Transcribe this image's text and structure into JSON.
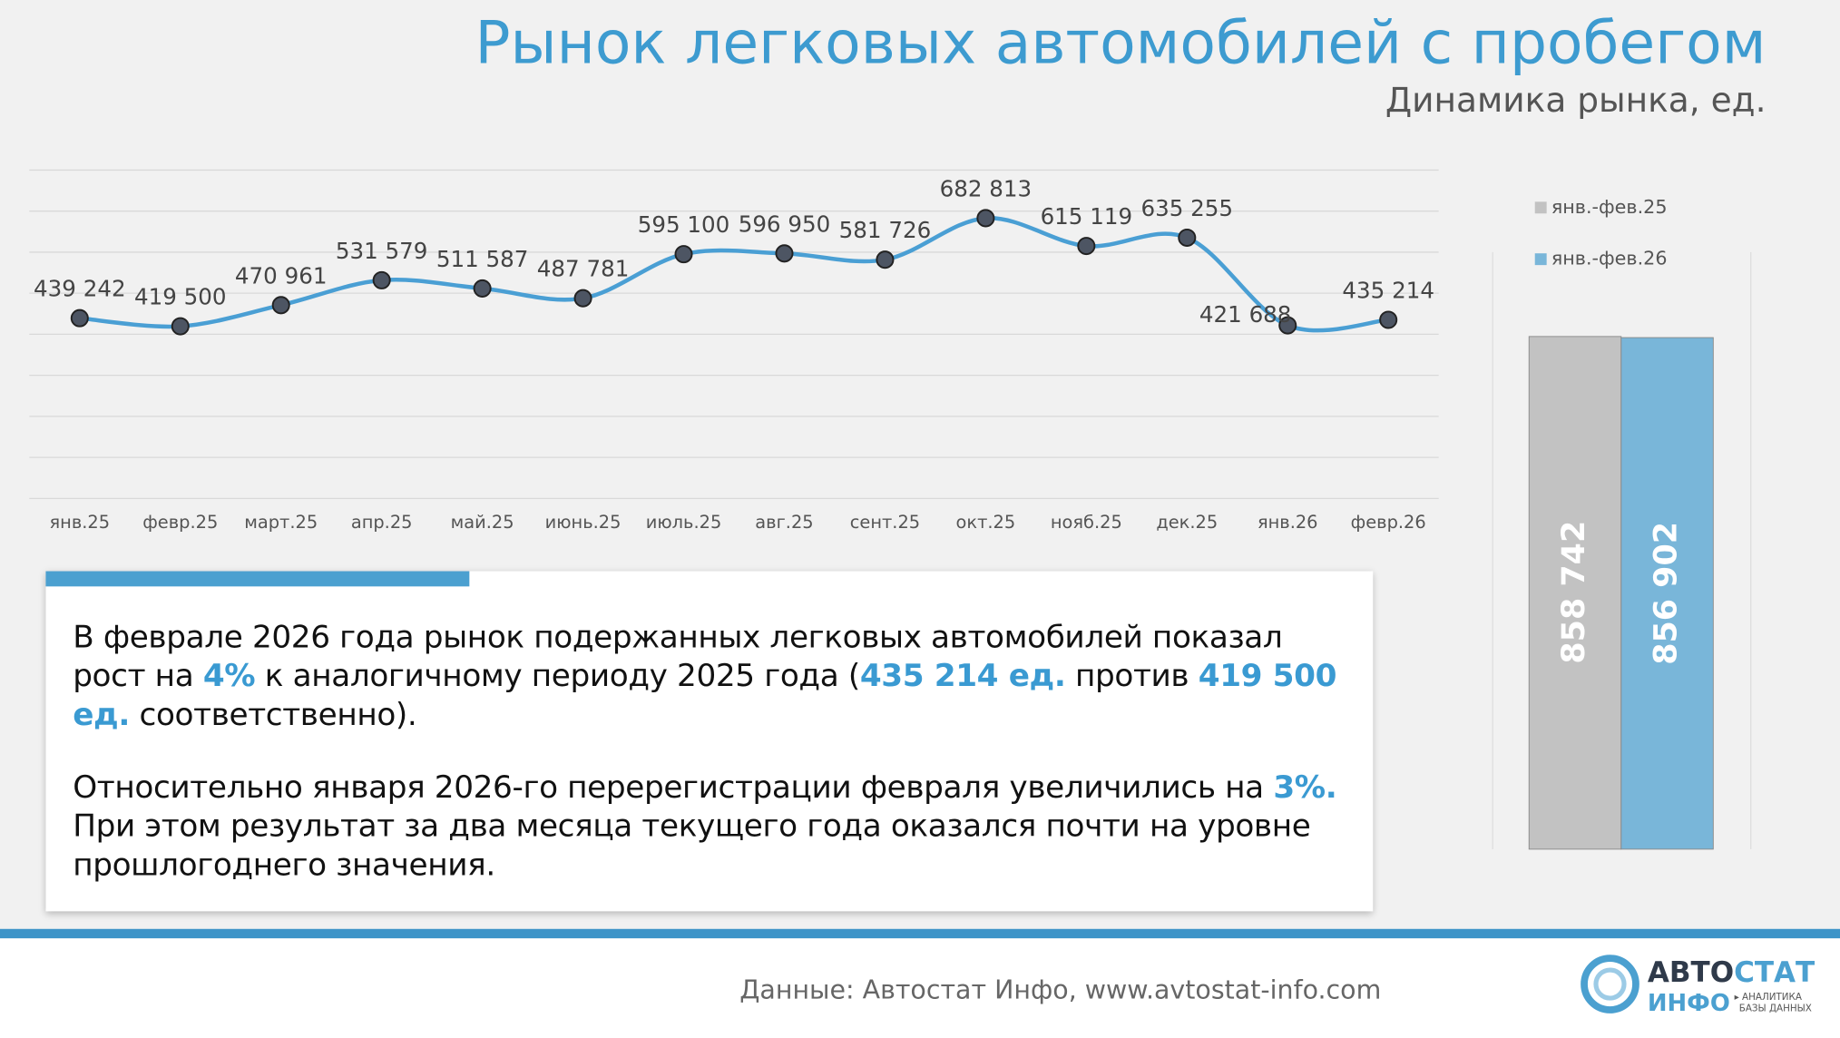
{
  "title": "Рынок легковых автомобилей с пробегом",
  "subtitle": "Динамика рынка, ед.",
  "chart_data": [
    {
      "type": "line",
      "categories": [
        "янв.25",
        "февр.25",
        "март.25",
        "апр.25",
        "май.25",
        "июнь.25",
        "июль.25",
        "авг.25",
        "сент.25",
        "окт.25",
        "нояб.25",
        "дек.25",
        "янв.26",
        "февр.26"
      ],
      "values": [
        439242,
        419500,
        470961,
        531579,
        511587,
        487781,
        595100,
        596950,
        581726,
        682813,
        615119,
        635255,
        421688,
        435214
      ],
      "value_labels": [
        "439 242",
        "419 500",
        "470 961",
        "531 579",
        "511 587",
        "487 781",
        "595 100",
        "596 950",
        "581 726",
        "682 813",
        "615 119",
        "635 255",
        "421 688",
        "435 214"
      ],
      "color": "#4a9fd4",
      "ylim": [
        0,
        800000
      ],
      "yticks": [
        0,
        100000,
        200000,
        300000,
        400000,
        500000,
        600000,
        700000,
        800000
      ],
      "grid": true
    },
    {
      "type": "bar",
      "series": [
        {
          "name": "янв.-фев.25",
          "color": "#c2c2c2",
          "values": [
            858742
          ],
          "value_labels": [
            "858 742"
          ]
        },
        {
          "name": "янв.-фев.26",
          "color": "#79b6d9",
          "values": [
            856902
          ],
          "value_labels": [
            "856 902"
          ]
        }
      ],
      "ylim": [
        0,
        1000000
      ]
    }
  ],
  "text_box": {
    "paragraphs": [
      [
        "В феврале 2026 года рынок подержанных легковых автомобилей показал рост на ",
        "4%",
        " к аналогичному периоду 2025 года (",
        "435 214 ед.",
        " против ",
        "419 500 ед.",
        " соответственно)."
      ],
      [
        "Относительно января 2026-го перерегистрации февраля увеличились на ",
        "3%.",
        "При этом результат за два месяца текущего года оказался почти на уровне прошлогоднего значения."
      ]
    ]
  },
  "footer": {
    "source": "Данные: Автостат Инфо, www.avtostat-info.com",
    "logo": {
      "part1": "АВТО",
      "part2": "СТАТ",
      "part3": "ИНФО",
      "tag1": "▸ АНАЛИТИКА",
      "tag2": "БАЗЫ ДАННЫХ"
    }
  }
}
